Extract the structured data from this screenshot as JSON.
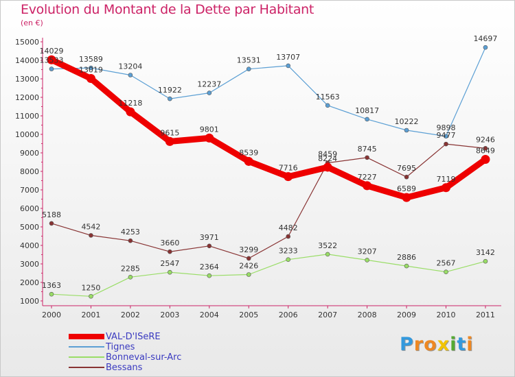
{
  "header": {
    "title": "Evolution du Montant de la Dette par Habitant",
    "subtitle": "(en €)"
  },
  "logo": {
    "letters": [
      "P",
      "r",
      "o",
      "x",
      "i",
      "t",
      "i"
    ],
    "colors": [
      "#3399dd",
      "#ee8822",
      "#ee8822",
      "#f2c400",
      "#55aa33",
      "#3399dd",
      "#ee8822"
    ]
  },
  "chart_data": {
    "type": "line",
    "x": [
      "2000",
      "2001",
      "2002",
      "2003",
      "2004",
      "2005",
      "2006",
      "2007",
      "2008",
      "2009",
      "2010",
      "2011"
    ],
    "ylim": [
      1000,
      15000
    ],
    "y_ticks": [
      "1000",
      "2000",
      "3000",
      "4000",
      "5000",
      "6000",
      "7000",
      "8000",
      "9000",
      "10000",
      "11000",
      "12000",
      "13000",
      "14000",
      "15000"
    ],
    "grid": false,
    "legend_position": "bottom-left",
    "series": [
      {
        "name": "VAL-D'ISeRE",
        "color": "#ee0000",
        "values": [
          14029,
          13019,
          11218,
          9615,
          9801,
          8539,
          7716,
          8224,
          7227,
          6589,
          7119,
          8649
        ],
        "labels": [
          "14029",
          "13019",
          "11218",
          "9615",
          "9801",
          "8539",
          "7716",
          "8224",
          "7227",
          "6589",
          "7119",
          "8649"
        ]
      },
      {
        "name": "Tignes",
        "color": "#5b9fd4",
        "values": [
          13533,
          13589,
          13204,
          11922,
          12237,
          13531,
          13707,
          11563,
          10817,
          10222,
          9898,
          14697
        ],
        "labels": [
          "13533",
          "13589",
          "13204",
          "11922",
          "12237",
          "13531",
          "13707",
          "11563",
          "10817",
          "10222",
          "9898",
          "14697"
        ]
      },
      {
        "name": "Bonneval-sur-Arc",
        "color": "#99dd66",
        "values": [
          1363,
          1250,
          2285,
          2547,
          2364,
          2426,
          3233,
          3522,
          3207,
          2886,
          2567,
          3142
        ],
        "labels": [
          "1363",
          "1250",
          "2285",
          "2547",
          "2364",
          "2426",
          "3233",
          "3522",
          "3207",
          "2886",
          "2567",
          "3142"
        ]
      },
      {
        "name": "Bessans",
        "color": "#883333",
        "values": [
          5188,
          4542,
          4253,
          3660,
          3971,
          3299,
          4482,
          8459,
          8745,
          7695,
          9477,
          9246
        ],
        "labels": [
          "5188",
          "4542",
          "4253",
          "3660",
          "3971",
          "3299",
          "4482",
          "8459",
          "8745",
          "7695",
          "9477",
          "9246"
        ]
      }
    ]
  }
}
